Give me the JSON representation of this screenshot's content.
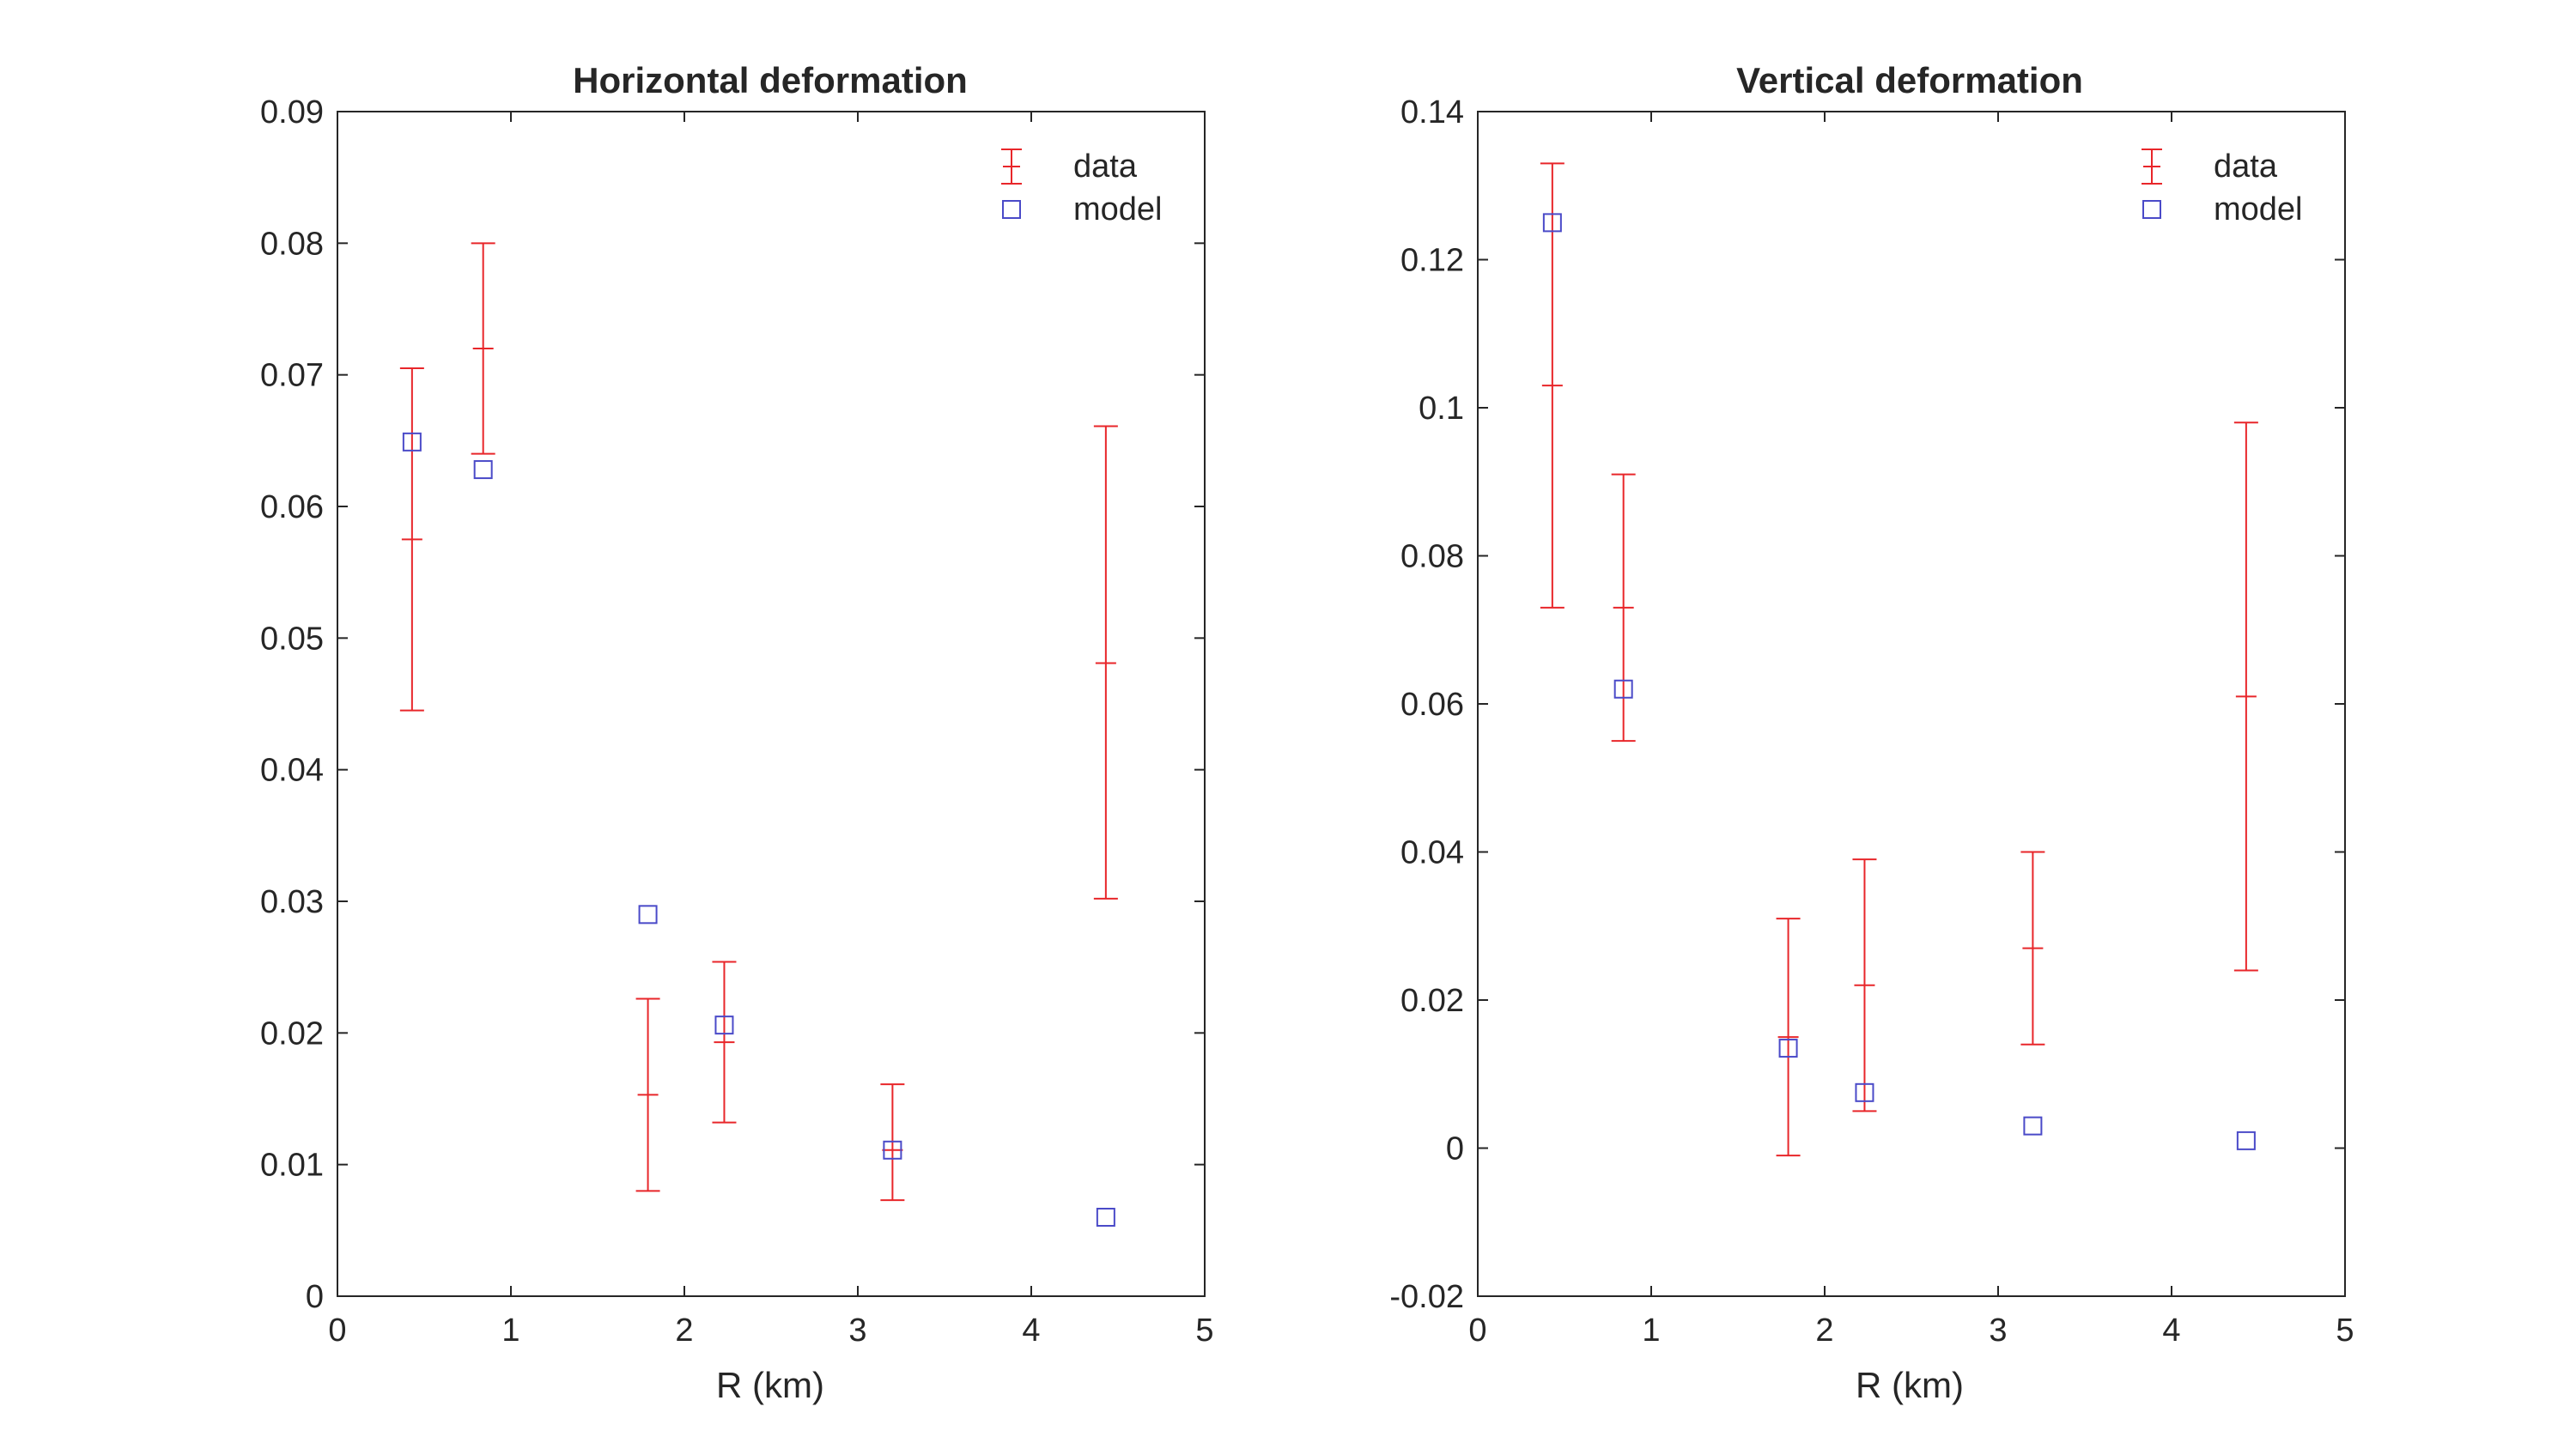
{
  "chart_data": [
    {
      "type": "scatter",
      "title": "Horizontal deformation",
      "xlabel": "R (km)",
      "ylabel": "",
      "xlim": [
        0,
        5
      ],
      "ylim": [
        0,
        0.09
      ],
      "xticks": [
        "0",
        "1",
        "2",
        "3",
        "4",
        "5"
      ],
      "yticks": [
        "0",
        "0.01",
        "0.02",
        "0.03",
        "0.04",
        "0.05",
        "0.06",
        "0.07",
        "0.08",
        "0.09"
      ],
      "legend_position": "top-right",
      "grid": false,
      "series": [
        {
          "name": "data",
          "style": "errorbar",
          "color": "#e8262a",
          "x": [
            0.43,
            0.84,
            1.79,
            2.23,
            3.2,
            4.43
          ],
          "y": [
            0.0575,
            0.072,
            0.0153,
            0.0193,
            0.0111,
            0.0481
          ],
          "lower": [
            0.0445,
            0.064,
            0.008,
            0.0132,
            0.0073,
            0.0302
          ],
          "upper": [
            0.0705,
            0.08,
            0.0226,
            0.0254,
            0.0161,
            0.0661
          ]
        },
        {
          "name": "model",
          "style": "square-marker",
          "color": "#4a4ac8",
          "x": [
            0.43,
            0.84,
            1.79,
            2.23,
            3.2,
            4.43
          ],
          "y": [
            0.0649,
            0.0628,
            0.029,
            0.0206,
            0.0111,
            0.006
          ]
        }
      ]
    },
    {
      "type": "scatter",
      "title": "Vertical deformation",
      "xlabel": "R (km)",
      "ylabel": "",
      "xlim": [
        0,
        5
      ],
      "ylim": [
        -0.02,
        0.14
      ],
      "xticks": [
        "0",
        "1",
        "2",
        "3",
        "4",
        "5"
      ],
      "yticks": [
        "-0.02",
        "0",
        "0.02",
        "0.04",
        "0.06",
        "0.08",
        "0.1",
        "0.12",
        "0.14"
      ],
      "legend_position": "top-right",
      "grid": false,
      "series": [
        {
          "name": "data",
          "style": "errorbar",
          "color": "#e8262a",
          "x": [
            0.43,
            0.84,
            1.79,
            2.23,
            3.2,
            4.43
          ],
          "y": [
            0.103,
            0.073,
            0.015,
            0.022,
            0.027,
            0.061
          ],
          "lower": [
            0.073,
            0.055,
            -0.001,
            0.005,
            0.014,
            0.024
          ],
          "upper": [
            0.133,
            0.091,
            0.031,
            0.039,
            0.04,
            0.098
          ]
        },
        {
          "name": "model",
          "style": "square-marker",
          "color": "#4a4ac8",
          "x": [
            0.43,
            0.84,
            1.79,
            2.23,
            3.2,
            4.43
          ],
          "y": [
            0.125,
            0.062,
            0.0135,
            0.0075,
            0.003,
            0.001
          ]
        }
      ]
    }
  ]
}
